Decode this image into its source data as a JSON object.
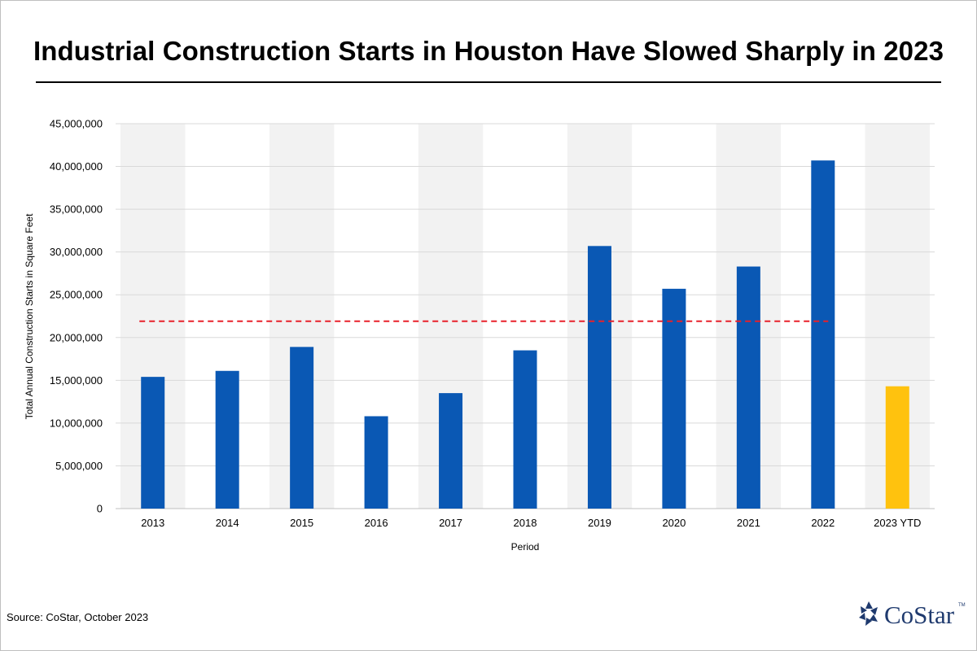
{
  "title": "Industrial Construction Starts in Houston Have Slowed Sharply in 2023",
  "source": "Source: CoStar, October 2023",
  "logo": {
    "text": "CoStar",
    "tm": "TM",
    "icon": "costar-star-icon"
  },
  "colors": {
    "bar": "#0a58b4",
    "highlight_bar": "#ffc20e",
    "average_line": "#e8202a",
    "band": "#f2f2f2",
    "grid": "#d9d9d9"
  },
  "chart_data": {
    "type": "bar",
    "title": "Industrial Construction Starts in Houston Have Slowed Sharply in 2023",
    "xlabel": "Period",
    "ylabel": "Total Annual Construction Starts in Square Feet",
    "categories": [
      "2013",
      "2014",
      "2015",
      "2016",
      "2017",
      "2018",
      "2019",
      "2020",
      "2021",
      "2022",
      "2023 YTD"
    ],
    "values": [
      15400000,
      16100000,
      18900000,
      10800000,
      13500000,
      18500000,
      30700000,
      25700000,
      28300000,
      40700000,
      14300000
    ],
    "highlight_categories": [
      "2023 YTD"
    ],
    "average_line": 21900000,
    "ylim": [
      0,
      45000000
    ],
    "yticks": [
      0,
      5000000,
      10000000,
      15000000,
      20000000,
      25000000,
      30000000,
      35000000,
      40000000,
      45000000
    ],
    "ytick_labels": [
      "0",
      "5,000,000",
      "10,000,000",
      "15,000,000",
      "20,000,000",
      "25,000,000",
      "30,000,000",
      "35,000,000",
      "40,000,000",
      "45,000,000"
    ],
    "grid": true,
    "alternating_bands": true,
    "legend": "none"
  }
}
